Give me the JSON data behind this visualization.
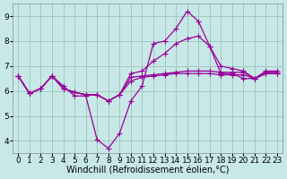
{
  "bg_color": "#c8e8e8",
  "grid_color": "#a0c8c0",
  "line_color": "#990099",
  "marker": "+",
  "markersize": 4,
  "linewidth": 0.9,
  "xlabel": "Windchill (Refroidissement éolien,°C)",
  "xlabel_fontsize": 7,
  "tick_fontsize": 6.5,
  "ylim": [
    3.5,
    9.5
  ],
  "xlim": [
    -0.5,
    23.5
  ],
  "yticks": [
    4,
    5,
    6,
    7,
    8,
    9
  ],
  "xticks": [
    0,
    1,
    2,
    3,
    4,
    5,
    6,
    7,
    8,
    9,
    10,
    11,
    12,
    13,
    14,
    15,
    16,
    17,
    18,
    19,
    20,
    21,
    22,
    23
  ],
  "lines": [
    [
      6.6,
      5.9,
      6.1,
      6.6,
      6.2,
      5.8,
      5.8,
      4.05,
      3.7,
      4.3,
      5.6,
      6.2,
      7.9,
      8.0,
      8.5,
      9.2,
      8.8,
      7.8,
      6.7,
      6.7,
      6.5,
      6.5,
      6.7,
      6.7
    ],
    [
      6.6,
      5.9,
      6.1,
      6.6,
      6.1,
      5.95,
      5.85,
      5.85,
      5.6,
      5.85,
      6.4,
      6.55,
      6.6,
      6.65,
      6.7,
      6.7,
      6.7,
      6.7,
      6.65,
      6.65,
      6.65,
      6.5,
      6.7,
      6.7
    ],
    [
      6.6,
      5.9,
      6.1,
      6.6,
      6.1,
      5.95,
      5.85,
      5.85,
      5.6,
      5.85,
      6.55,
      6.6,
      6.65,
      6.7,
      6.75,
      6.8,
      6.8,
      6.8,
      6.75,
      6.75,
      6.75,
      6.5,
      6.75,
      6.75
    ],
    [
      6.6,
      5.9,
      6.1,
      6.6,
      6.1,
      5.95,
      5.85,
      5.85,
      5.6,
      5.85,
      6.7,
      6.8,
      7.2,
      7.5,
      7.9,
      8.1,
      8.2,
      7.8,
      7.0,
      6.9,
      6.8,
      6.5,
      6.8,
      6.8
    ]
  ]
}
